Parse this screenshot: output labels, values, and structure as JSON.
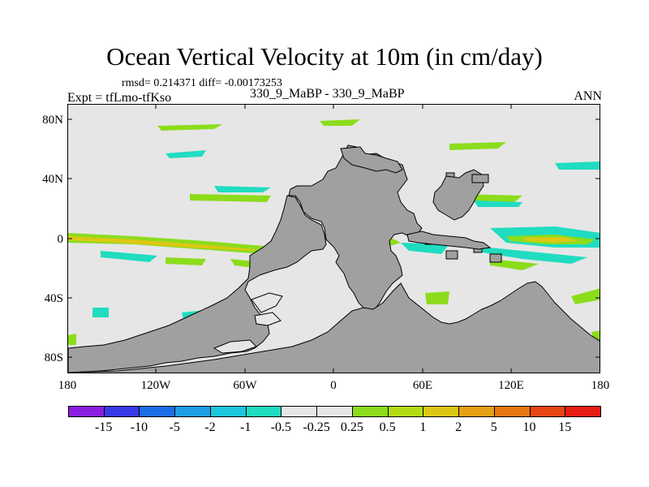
{
  "header": {
    "title": "Ocean Vertical Velocity at 10m (in cm/day)",
    "rmsd_text": "rmsd= 0.214371 diff= -0.00173253",
    "expt_text": "Expt = tfLmo-tfKso",
    "cases_text": "330_9_MaBP - 330_9_MaBP",
    "season": "ANN"
  },
  "chart_data": {
    "type": "heatmap",
    "title": "Ocean Vertical Velocity at 10m (in cm/day)",
    "xlabel": "",
    "ylabel": "",
    "x_ticks": [
      "180",
      "120W",
      "60W",
      "0",
      "60E",
      "120E",
      "180"
    ],
    "x_values": [
      -180,
      -120,
      -60,
      0,
      60,
      120,
      180
    ],
    "y_ticks": [
      "80N",
      "40N",
      "0",
      "40S",
      "80S"
    ],
    "y_values": [
      80,
      40,
      0,
      -40,
      -80
    ],
    "xlim": [
      -180,
      180
    ],
    "ylim": [
      -90,
      90
    ],
    "land_color": "#a0a0a0",
    "ocean_color": "#e6e6e6",
    "colorbar": {
      "labels": [
        "-15",
        "-10",
        "-5",
        "-2",
        "-1",
        "-0.5",
        "-0.25",
        "0.25",
        "0.5",
        "1",
        "2",
        "5",
        "10",
        "15"
      ],
      "colors": [
        "#8a1ee0",
        "#3a3ae8",
        "#1c6ee6",
        "#1e9ee6",
        "#1ec6e0",
        "#20dcc0",
        "#e6e6e6",
        "#e6e6e6",
        "#8cdc1c",
        "#b4dc14",
        "#dcc814",
        "#e6a014",
        "#e67814",
        "#e64614",
        "#e61e14"
      ]
    }
  }
}
